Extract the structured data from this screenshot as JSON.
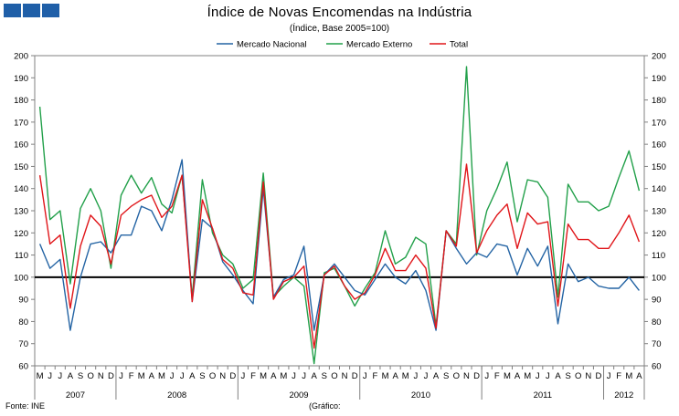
{
  "header": {
    "title": "Índice de Novas Encomendas na Indústria",
    "subtitle": "(Índice, Base 2005=100)"
  },
  "footer": {
    "source": "Fonte: INE",
    "note": "(Gráfico:"
  },
  "colors": {
    "nacional": "#2464a4",
    "externo": "#22a04a",
    "total": "#e0161a",
    "baseline": "#000000",
    "logo": "#1f5fa8"
  },
  "chart_data": {
    "type": "line",
    "title": "Índice de Novas Encomendas na Indústria",
    "subtitle": "(Índice, Base 2005=100)",
    "ylim": [
      60,
      200
    ],
    "yticks": [
      60,
      70,
      80,
      90,
      100,
      110,
      120,
      130,
      140,
      150,
      160,
      170,
      180,
      190,
      200
    ],
    "reference_line": 100,
    "legend_position": "top-center",
    "month_labels": [
      "M",
      "J",
      "J",
      "A",
      "S",
      "O",
      "N",
      "D",
      "J",
      "F",
      "M",
      "A",
      "M",
      "J",
      "J",
      "A",
      "S",
      "O",
      "N",
      "D",
      "J",
      "F",
      "M",
      "A",
      "M",
      "J",
      "J",
      "A",
      "S",
      "O",
      "N",
      "D",
      "J",
      "F",
      "M",
      "A",
      "M",
      "J",
      "J",
      "A",
      "S",
      "O",
      "N",
      "D",
      "J",
      "F",
      "M",
      "A",
      "M",
      "J",
      "J",
      "A",
      "S",
      "O",
      "N",
      "D",
      "J",
      "F",
      "M",
      "A"
    ],
    "years": [
      {
        "label": "2007",
        "start": 0,
        "end": 7
      },
      {
        "label": "2008",
        "start": 8,
        "end": 19
      },
      {
        "label": "2009",
        "start": 20,
        "end": 31
      },
      {
        "label": "2010",
        "start": 32,
        "end": 43
      },
      {
        "label": "2011",
        "start": 44,
        "end": 55
      },
      {
        "label": "2012",
        "start": 56,
        "end": 59
      }
    ],
    "series": [
      {
        "name": "Mercado Nacional",
        "color": "#2464a4",
        "values": [
          115,
          104,
          108,
          76,
          100,
          115,
          116,
          111,
          119,
          119,
          132,
          130,
          121,
          135,
          153,
          89,
          126,
          122,
          107,
          101,
          94,
          88,
          140,
          91,
          99,
          101,
          114,
          76,
          101,
          106,
          100,
          94,
          92,
          99,
          106,
          100,
          97,
          103,
          94,
          76,
          121,
          113,
          106,
          111,
          109,
          115,
          114,
          101,
          113,
          105,
          114,
          79,
          106,
          98,
          100,
          96,
          95,
          95,
          100,
          94
        ]
      },
      {
        "name": "Mercado Externo",
        "color": "#22a04a",
        "values": [
          177,
          126,
          130,
          97,
          131,
          140,
          130,
          104,
          137,
          146,
          138,
          145,
          133,
          129,
          146,
          91,
          144,
          120,
          110,
          106,
          95,
          99,
          147,
          91,
          96,
          100,
          96,
          61,
          102,
          104,
          96,
          87,
          95,
          102,
          121,
          106,
          109,
          118,
          115,
          78,
          121,
          115,
          195,
          110,
          130,
          140,
          152,
          125,
          144,
          143,
          136,
          91,
          142,
          134,
          134,
          130,
          132,
          145,
          157,
          139
        ]
      },
      {
        "name": "Total",
        "color": "#e0161a",
        "values": [
          146,
          115,
          119,
          86,
          114,
          128,
          123,
          106,
          128,
          132,
          135,
          137,
          127,
          132,
          146,
          89,
          135,
          122,
          108,
          104,
          93,
          92,
          143,
          90,
          98,
          100,
          105,
          68,
          101,
          105,
          96,
          90,
          93,
          101,
          113,
          103,
          103,
          110,
          104,
          77,
          121,
          114,
          151,
          111,
          121,
          128,
          133,
          113,
          129,
          124,
          125,
          87,
          124,
          117,
          117,
          113,
          113,
          120,
          128,
          116
        ]
      }
    ]
  }
}
